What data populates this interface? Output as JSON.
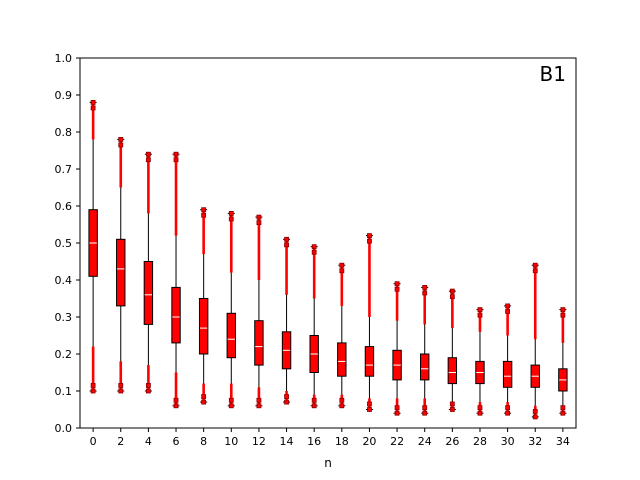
{
  "chart_data": {
    "type": "box",
    "annotation": "B1",
    "xlabel": "n",
    "ylabel": "",
    "ylim": [
      0.0,
      1.0
    ],
    "yticks": [
      "0.0",
      "0.1",
      "0.2",
      "0.3",
      "0.4",
      "0.5",
      "0.6",
      "0.7",
      "0.8",
      "0.9",
      "1.0"
    ],
    "xticks": [
      "0",
      "2",
      "4",
      "6",
      "8",
      "10",
      "12",
      "14",
      "16",
      "18",
      "20",
      "22",
      "24",
      "26",
      "28",
      "30",
      "32",
      "34"
    ],
    "grid": false,
    "colors": {
      "box_fill": "#ff0000",
      "box_edge": "#000000",
      "median": "#ffffff",
      "flier": "#ff0000",
      "flier_edge": "#8b0000",
      "axis": "#000000"
    },
    "boxes": [
      {
        "x": 0,
        "whislo": 0.1,
        "q1": 0.41,
        "med": 0.5,
        "q3": 0.59,
        "whishi": 0.88,
        "fly_lo_max": 0.22,
        "fly_hi_min": 0.78
      },
      {
        "x": 2,
        "whislo": 0.1,
        "q1": 0.33,
        "med": 0.43,
        "q3": 0.51,
        "whishi": 0.78,
        "fly_lo_max": 0.18,
        "fly_hi_min": 0.65
      },
      {
        "x": 4,
        "whislo": 0.1,
        "q1": 0.28,
        "med": 0.36,
        "q3": 0.45,
        "whishi": 0.74,
        "fly_lo_max": 0.17,
        "fly_hi_min": 0.58
      },
      {
        "x": 6,
        "whislo": 0.06,
        "q1": 0.23,
        "med": 0.3,
        "q3": 0.38,
        "whishi": 0.74,
        "fly_lo_max": 0.15,
        "fly_hi_min": 0.52
      },
      {
        "x": 8,
        "whislo": 0.07,
        "q1": 0.2,
        "med": 0.27,
        "q3": 0.35,
        "whishi": 0.59,
        "fly_lo_max": 0.12,
        "fly_hi_min": 0.47
      },
      {
        "x": 10,
        "whislo": 0.06,
        "q1": 0.19,
        "med": 0.24,
        "q3": 0.31,
        "whishi": 0.58,
        "fly_lo_max": 0.12,
        "fly_hi_min": 0.42
      },
      {
        "x": 12,
        "whislo": 0.06,
        "q1": 0.17,
        "med": 0.22,
        "q3": 0.29,
        "whishi": 0.57,
        "fly_lo_max": 0.11,
        "fly_hi_min": 0.4
      },
      {
        "x": 14,
        "whislo": 0.07,
        "q1": 0.16,
        "med": 0.21,
        "q3": 0.26,
        "whishi": 0.51,
        "fly_lo_max": 0.1,
        "fly_hi_min": 0.36
      },
      {
        "x": 16,
        "whislo": 0.06,
        "q1": 0.15,
        "med": 0.2,
        "q3": 0.25,
        "whishi": 0.49,
        "fly_lo_max": 0.09,
        "fly_hi_min": 0.35
      },
      {
        "x": 18,
        "whislo": 0.06,
        "q1": 0.14,
        "med": 0.18,
        "q3": 0.23,
        "whishi": 0.44,
        "fly_lo_max": 0.09,
        "fly_hi_min": 0.33
      },
      {
        "x": 20,
        "whislo": 0.05,
        "q1": 0.14,
        "med": 0.17,
        "q3": 0.22,
        "whishi": 0.52,
        "fly_lo_max": 0.08,
        "fly_hi_min": 0.3
      },
      {
        "x": 22,
        "whislo": 0.04,
        "q1": 0.13,
        "med": 0.17,
        "q3": 0.21,
        "whishi": 0.39,
        "fly_lo_max": 0.08,
        "fly_hi_min": 0.29
      },
      {
        "x": 24,
        "whislo": 0.04,
        "q1": 0.13,
        "med": 0.16,
        "q3": 0.2,
        "whishi": 0.38,
        "fly_lo_max": 0.08,
        "fly_hi_min": 0.28
      },
      {
        "x": 26,
        "whislo": 0.05,
        "q1": 0.12,
        "med": 0.15,
        "q3": 0.19,
        "whishi": 0.37,
        "fly_lo_max": 0.07,
        "fly_hi_min": 0.27
      },
      {
        "x": 28,
        "whislo": 0.04,
        "q1": 0.12,
        "med": 0.15,
        "q3": 0.18,
        "whishi": 0.32,
        "fly_lo_max": 0.07,
        "fly_hi_min": 0.26
      },
      {
        "x": 30,
        "whislo": 0.04,
        "q1": 0.11,
        "med": 0.14,
        "q3": 0.18,
        "whishi": 0.33,
        "fly_lo_max": 0.07,
        "fly_hi_min": 0.25
      },
      {
        "x": 32,
        "whislo": 0.03,
        "q1": 0.11,
        "med": 0.14,
        "q3": 0.17,
        "whishi": 0.44,
        "fly_lo_max": 0.06,
        "fly_hi_min": 0.24
      },
      {
        "x": 34,
        "whislo": 0.04,
        "q1": 0.1,
        "med": 0.13,
        "q3": 0.16,
        "whishi": 0.32,
        "fly_lo_max": 0.06,
        "fly_hi_min": 0.23
      }
    ]
  }
}
